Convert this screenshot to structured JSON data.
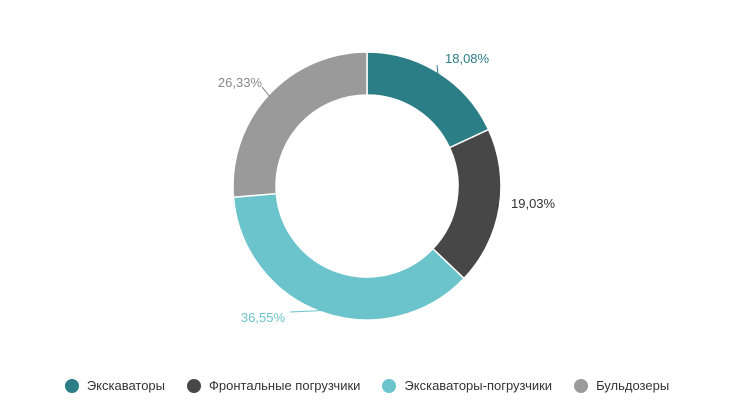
{
  "chart_data": {
    "type": "pie",
    "donut": true,
    "title": "",
    "series": [
      {
        "name": "Экскаваторы",
        "value": 18.08,
        "label": "18,08%",
        "color": "#2b7d86"
      },
      {
        "name": "Фронтальные погрузчики",
        "value": 19.03,
        "label": "19,03%",
        "color": "#474747"
      },
      {
        "name": "Экскаваторы-погрузчики",
        "value": 36.55,
        "label": "36,55%",
        "color": "#6bc3cc"
      },
      {
        "name": "Бульдозеры",
        "value": 26.33,
        "label": "26,33%",
        "color": "#9a9a9a"
      }
    ],
    "label_colors": [
      "#2b7d86",
      "#333333",
      "#6bc3cc",
      "#888888"
    ],
    "legend_position": "bottom-center"
  }
}
